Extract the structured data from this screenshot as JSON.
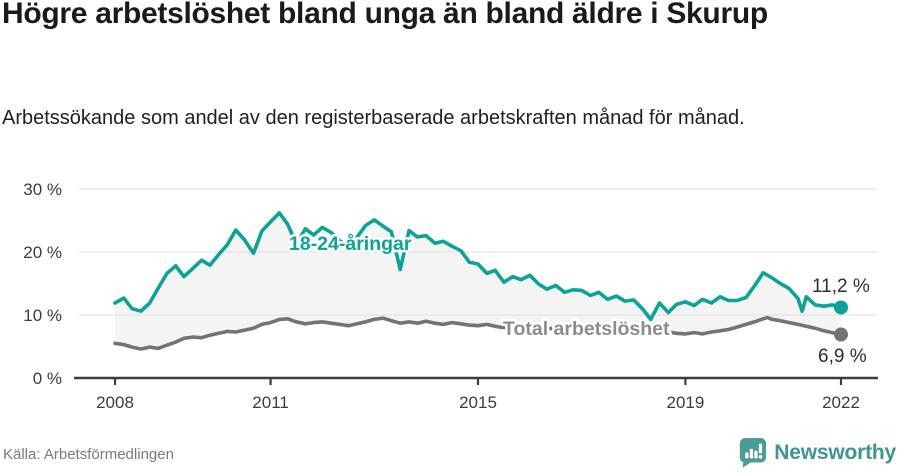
{
  "header": {
    "title": "Högre arbetslöshet bland unga än bland äldre i Skurup",
    "subtitle": "Arbetssökande som andel av den registerbaserade arbetskraften månad för månad."
  },
  "footer": {
    "source": "Källa: Arbetsförmedlingen",
    "brand": "Newsworthy",
    "brand_icon": "newsworthy-speech-bubble-bar-chart-icon"
  },
  "colors": {
    "youth_line": "#0aa396",
    "total_line": "#737373",
    "total_label": "#8c8c8c",
    "band_fill": "#f4f4f4",
    "gridline": "#e3e3e3",
    "axis": "#3d3d3d",
    "axis_text": "#3c3c3c",
    "value_text": "#2e2e2e",
    "brand_teal": "#3f968f",
    "icon_teal": "#4a9d96"
  },
  "chart_data": {
    "type": "line",
    "unit": "%",
    "x_axis": {
      "ticks": [
        2008,
        2011,
        2015,
        2019,
        2022
      ],
      "tick_labels": [
        "2008",
        "2011",
        "2015",
        "2019",
        "2022"
      ],
      "range": [
        2008,
        2022.08
      ]
    },
    "y_axis": {
      "ticks": [
        0,
        10,
        20,
        30
      ],
      "tick_labels": [
        "0 %",
        "10 %",
        "20 %",
        "30 %"
      ],
      "range": [
        0,
        32
      ],
      "grid": true
    },
    "series": [
      {
        "name": "18-24-åringar",
        "end_label": "11,2 %",
        "end_value": 11.2,
        "points": [
          [
            2008.0,
            11.9
          ],
          [
            2008.17,
            12.7
          ],
          [
            2008.33,
            11.0
          ],
          [
            2008.5,
            10.6
          ],
          [
            2008.67,
            11.9
          ],
          [
            2008.83,
            14.2
          ],
          [
            2009.0,
            16.6
          ],
          [
            2009.17,
            17.8
          ],
          [
            2009.33,
            16.1
          ],
          [
            2009.5,
            17.4
          ],
          [
            2009.67,
            18.7
          ],
          [
            2009.83,
            17.9
          ],
          [
            2010.0,
            19.6
          ],
          [
            2010.17,
            21.2
          ],
          [
            2010.33,
            23.5
          ],
          [
            2010.5,
            21.9
          ],
          [
            2010.67,
            19.8
          ],
          [
            2010.83,
            23.3
          ],
          [
            2011.0,
            24.8
          ],
          [
            2011.17,
            26.2
          ],
          [
            2011.33,
            24.4
          ],
          [
            2011.5,
            21.2
          ],
          [
            2011.67,
            23.7
          ],
          [
            2011.83,
            22.7
          ],
          [
            2012.0,
            23.9
          ],
          [
            2012.17,
            23.1
          ],
          [
            2012.33,
            21.8
          ],
          [
            2012.5,
            20.9
          ],
          [
            2012.67,
            22.4
          ],
          [
            2012.83,
            24.2
          ],
          [
            2013.0,
            25.1
          ],
          [
            2013.17,
            24.1
          ],
          [
            2013.33,
            23.2
          ],
          [
            2013.5,
            17.2
          ],
          [
            2013.67,
            23.4
          ],
          [
            2013.83,
            22.4
          ],
          [
            2014.0,
            22.6
          ],
          [
            2014.17,
            21.4
          ],
          [
            2014.33,
            21.7
          ],
          [
            2014.5,
            20.9
          ],
          [
            2014.67,
            20.2
          ],
          [
            2014.83,
            18.4
          ],
          [
            2015.0,
            18.1
          ],
          [
            2015.17,
            16.6
          ],
          [
            2015.33,
            17.1
          ],
          [
            2015.5,
            15.2
          ],
          [
            2015.67,
            16.1
          ],
          [
            2015.83,
            15.6
          ],
          [
            2016.0,
            16.3
          ],
          [
            2016.17,
            14.9
          ],
          [
            2016.33,
            14.1
          ],
          [
            2016.5,
            14.7
          ],
          [
            2016.67,
            13.6
          ],
          [
            2016.83,
            14.0
          ],
          [
            2017.0,
            13.9
          ],
          [
            2017.17,
            13.1
          ],
          [
            2017.33,
            13.6
          ],
          [
            2017.5,
            12.5
          ],
          [
            2017.67,
            13.0
          ],
          [
            2017.83,
            12.2
          ],
          [
            2018.0,
            12.4
          ],
          [
            2018.17,
            11.0
          ],
          [
            2018.33,
            9.3
          ],
          [
            2018.5,
            11.9
          ],
          [
            2018.67,
            10.4
          ],
          [
            2018.83,
            11.7
          ],
          [
            2019.0,
            12.1
          ],
          [
            2019.17,
            11.5
          ],
          [
            2019.33,
            12.5
          ],
          [
            2019.5,
            11.9
          ],
          [
            2019.67,
            12.9
          ],
          [
            2019.83,
            12.3
          ],
          [
            2020.0,
            12.3
          ],
          [
            2020.17,
            12.8
          ],
          [
            2020.33,
            14.6
          ],
          [
            2020.5,
            16.7
          ],
          [
            2020.67,
            15.9
          ],
          [
            2020.83,
            15.0
          ],
          [
            2021.0,
            14.2
          ],
          [
            2021.17,
            12.6
          ],
          [
            2021.25,
            10.6
          ],
          [
            2021.33,
            12.9
          ],
          [
            2021.5,
            11.6
          ],
          [
            2021.67,
            11.4
          ],
          [
            2021.83,
            11.6
          ],
          [
            2022.0,
            11.2
          ]
        ]
      },
      {
        "name": "Total arbetslöshet",
        "end_label": "6,9 %",
        "end_value": 6.9,
        "points": [
          [
            2008.0,
            5.5
          ],
          [
            2008.17,
            5.3
          ],
          [
            2008.33,
            4.9
          ],
          [
            2008.5,
            4.6
          ],
          [
            2008.67,
            4.9
          ],
          [
            2008.83,
            4.7
          ],
          [
            2009.0,
            5.2
          ],
          [
            2009.17,
            5.7
          ],
          [
            2009.33,
            6.3
          ],
          [
            2009.5,
            6.5
          ],
          [
            2009.67,
            6.4
          ],
          [
            2009.83,
            6.8
          ],
          [
            2010.0,
            7.1
          ],
          [
            2010.17,
            7.4
          ],
          [
            2010.33,
            7.3
          ],
          [
            2010.5,
            7.6
          ],
          [
            2010.67,
            7.9
          ],
          [
            2010.83,
            8.5
          ],
          [
            2011.0,
            8.8
          ],
          [
            2011.17,
            9.3
          ],
          [
            2011.33,
            9.4
          ],
          [
            2011.5,
            8.9
          ],
          [
            2011.67,
            8.6
          ],
          [
            2011.83,
            8.8
          ],
          [
            2012.0,
            8.9
          ],
          [
            2012.17,
            8.7
          ],
          [
            2012.33,
            8.5
          ],
          [
            2012.5,
            8.3
          ],
          [
            2012.67,
            8.6
          ],
          [
            2012.83,
            8.9
          ],
          [
            2013.0,
            9.3
          ],
          [
            2013.17,
            9.5
          ],
          [
            2013.33,
            9.1
          ],
          [
            2013.5,
            8.7
          ],
          [
            2013.67,
            8.9
          ],
          [
            2013.83,
            8.7
          ],
          [
            2014.0,
            9.0
          ],
          [
            2014.17,
            8.7
          ],
          [
            2014.33,
            8.5
          ],
          [
            2014.5,
            8.8
          ],
          [
            2014.67,
            8.6
          ],
          [
            2014.83,
            8.4
          ],
          [
            2015.0,
            8.3
          ],
          [
            2015.17,
            8.5
          ],
          [
            2015.33,
            8.2
          ],
          [
            2015.5,
            8.0
          ],
          [
            2015.67,
            8.3
          ],
          [
            2015.83,
            8.1
          ],
          [
            2016.0,
            8.0
          ],
          [
            2016.17,
            8.2
          ],
          [
            2016.33,
            7.9
          ],
          [
            2016.5,
            7.8
          ],
          [
            2016.67,
            8.0
          ],
          [
            2016.83,
            7.8
          ],
          [
            2017.0,
            7.9
          ],
          [
            2017.17,
            8.0
          ],
          [
            2017.33,
            7.7
          ],
          [
            2017.5,
            7.6
          ],
          [
            2017.67,
            7.8
          ],
          [
            2017.83,
            7.6
          ],
          [
            2018.0,
            7.7
          ],
          [
            2018.17,
            7.5
          ],
          [
            2018.33,
            7.3
          ],
          [
            2018.5,
            7.1
          ],
          [
            2018.67,
            7.3
          ],
          [
            2018.83,
            7.1
          ],
          [
            2019.0,
            7.0
          ],
          [
            2019.17,
            7.2
          ],
          [
            2019.33,
            7.0
          ],
          [
            2019.5,
            7.3
          ],
          [
            2019.67,
            7.5
          ],
          [
            2019.83,
            7.7
          ],
          [
            2020.0,
            8.1
          ],
          [
            2020.17,
            8.5
          ],
          [
            2020.33,
            8.9
          ],
          [
            2020.5,
            9.4
          ],
          [
            2020.58,
            9.6
          ],
          [
            2020.67,
            9.3
          ],
          [
            2020.83,
            9.1
          ],
          [
            2021.0,
            8.8
          ],
          [
            2021.17,
            8.5
          ],
          [
            2021.33,
            8.2
          ],
          [
            2021.5,
            7.9
          ],
          [
            2021.67,
            7.5
          ],
          [
            2021.83,
            7.2
          ],
          [
            2022.0,
            6.9
          ]
        ]
      }
    ],
    "fill_between_series": true,
    "legend_position": "inline-labels"
  }
}
